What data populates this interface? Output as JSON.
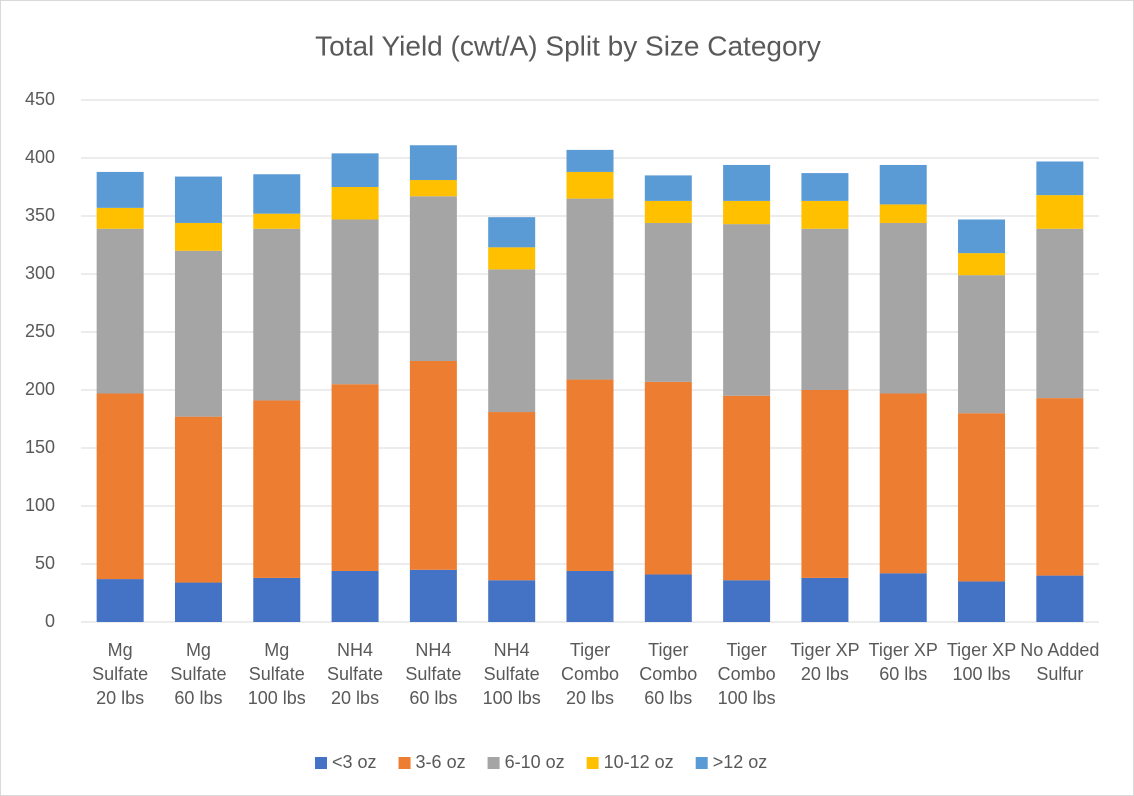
{
  "chart_data": {
    "type": "stacked_bar",
    "title": "Total Yield (cwt/A) Split by Size Category",
    "categories": [
      "Mg Sulfate 20 lbs",
      "Mg Sulfate 60 lbs",
      "Mg Sulfate 100 lbs",
      "NH4 Sulfate 20 lbs",
      "NH4 Sulfate 60 lbs",
      "NH4 Sulfate 100 lbs",
      "Tiger Combo 20 lbs",
      "Tiger Combo 60 lbs",
      "Tiger Combo 100 lbs",
      "Tiger XP 20 lbs",
      "Tiger XP 60 lbs",
      "Tiger XP 100 lbs",
      "No Added Sulfur"
    ],
    "series": [
      {
        "name": "<3 oz",
        "color": "#4472c4",
        "values": [
          37,
          34,
          38,
          44,
          45,
          36,
          44,
          41,
          36,
          38,
          42,
          35,
          40
        ]
      },
      {
        "name": "3-6 oz",
        "color": "#ed7d31",
        "values": [
          160,
          143,
          153,
          161,
          180,
          145,
          165,
          166,
          159,
          162,
          155,
          145,
          153
        ]
      },
      {
        "name": "6-10 oz",
        "color": "#a5a5a5",
        "values": [
          142,
          143,
          148,
          142,
          142,
          123,
          156,
          137,
          148,
          139,
          147,
          119,
          146
        ]
      },
      {
        "name": "10-12 oz",
        "color": "#ffc000",
        "values": [
          18,
          24,
          13,
          28,
          14,
          19,
          23,
          19,
          20,
          24,
          16,
          19,
          29
        ]
      },
      {
        "name": ">12 oz",
        "color": "#5b9bd5",
        "values": [
          31,
          40,
          34,
          29,
          30,
          26,
          19,
          22,
          31,
          24,
          34,
          29,
          29
        ]
      }
    ],
    "ylim": [
      0,
      450
    ],
    "yticks": [
      0,
      50,
      100,
      150,
      200,
      250,
      300,
      350,
      400,
      450
    ],
    "grid": true,
    "legend": "bottom"
  }
}
